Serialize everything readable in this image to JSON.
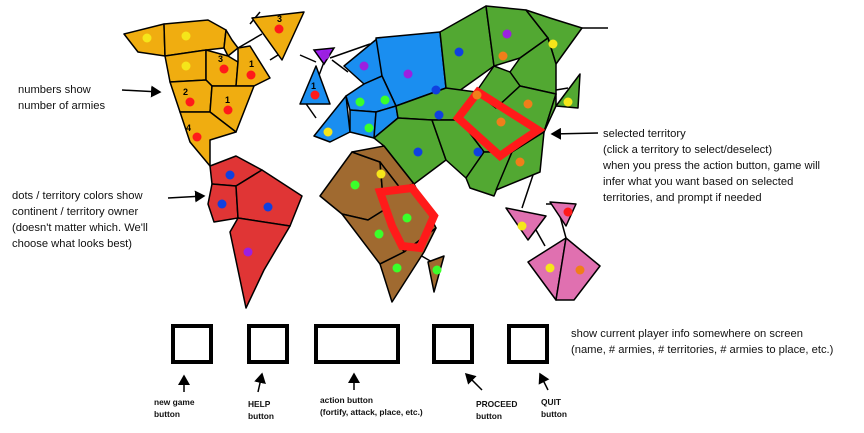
{
  "annotations": {
    "numbers": "numbers show\nnumber of armies",
    "dots": "dots / territory colors show\ncontinent / territory owner\n(doesn't matter which. We'll\nchoose what looks best)",
    "selected": "selected territory\n(click a territory to select/deselect)\nwhen you press the action button, game will\ninfer what you want based on selected\nterritories, and prompt if needed",
    "player_info": "show current player info somewhere on screen\n(name, # armies, # territories, # armies to place, etc.)"
  },
  "buttons": {
    "new_game": "new game\nbutton",
    "help": "HELP\nbutton",
    "action": "action button\n(fortify, attack, place, etc.)",
    "proceed": "PROCEED\nbutton",
    "quit": "QUIT\nbutton"
  },
  "army_counts": [
    "3",
    "3",
    "1",
    "2",
    "1",
    "4",
    "1"
  ],
  "colors": {
    "north_america": "#f0ad10",
    "south_america": "#e03535",
    "europe": "#1a8ef0",
    "africa": "#a06a30",
    "asia": "#52a832",
    "oceania": "#e070b0",
    "europe_small": "#a020f0",
    "selection": "#ff1a1a",
    "dot_red": "#ff1a1a",
    "dot_yellow": "#f5e61a",
    "dot_purple": "#9b20e0",
    "dot_green": "#3aff2a",
    "dot_blue": "#1040e0",
    "dot_orange": "#f07e1a"
  }
}
